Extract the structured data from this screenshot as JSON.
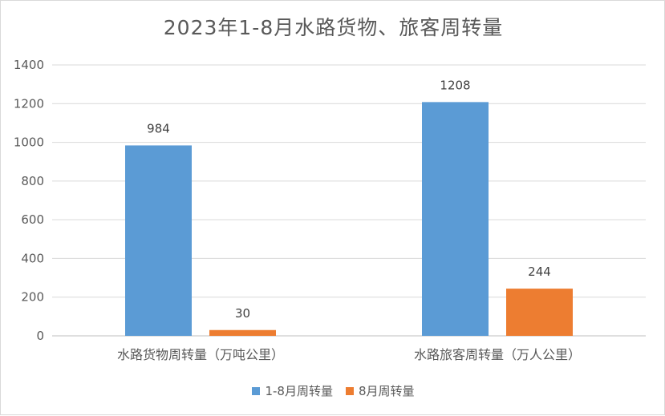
{
  "chart_data": {
    "type": "bar",
    "title": "2023年1-8月水路货物、旅客周转量",
    "categories": [
      "水路货物周转量（万吨公里）",
      "水路旅客周转量（万人公里）"
    ],
    "series": [
      {
        "name": "1-8月周转量",
        "values": [
          984,
          1208
        ],
        "color": "#5b9bd5"
      },
      {
        "name": "8月周转量",
        "values": [
          30,
          244
        ],
        "color": "#ed7d31"
      }
    ],
    "ylim": [
      0,
      1400
    ],
    "yticks": [
      0,
      200,
      400,
      600,
      800,
      1000,
      1200,
      1400
    ],
    "grid": true,
    "legend": "bottom",
    "data_labels": true
  }
}
